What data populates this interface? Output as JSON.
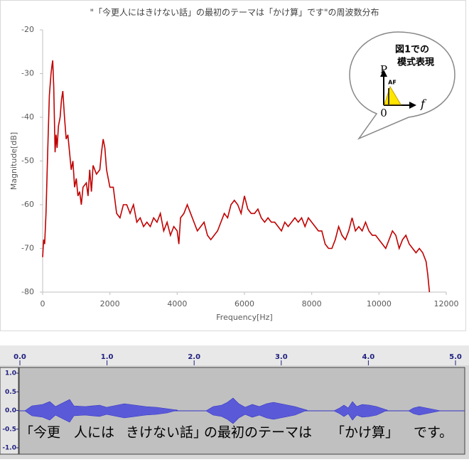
{
  "chart_data": [
    {
      "type": "line",
      "title": "\"「今更人にはきけない話」の最初のテーマは「かけ算」です\"の周波数分布",
      "x_label": "Frequency[Hz]",
      "y_label": "Magnitude[dB]",
      "xlim": [
        0,
        12000
      ],
      "xticks": [
        0,
        2000,
        4000,
        6000,
        8000,
        10000,
        12000
      ],
      "ylim": [
        -80,
        -20
      ],
      "yticks": [
        -20,
        -30,
        -40,
        -50,
        -60,
        -70,
        -80
      ],
      "grid": false,
      "series": [
        {
          "color": "#c00000",
          "x": [
            0,
            30,
            60,
            100,
            150,
            200,
            250,
            280,
            300,
            330,
            370,
            400,
            430,
            470,
            520,
            560,
            600,
            650,
            700,
            750,
            800,
            850,
            900,
            950,
            1000,
            1050,
            1100,
            1150,
            1200,
            1300,
            1350,
            1400,
            1450,
            1500,
            1600,
            1700,
            1750,
            1800,
            1850,
            1900,
            2000,
            2100,
            2200,
            2300,
            2400,
            2500,
            2600,
            2700,
            2800,
            2900,
            3000,
            3100,
            3200,
            3300,
            3400,
            3500,
            3600,
            3700,
            3800,
            3900,
            4000,
            4050,
            4100,
            4200,
            4300,
            4400,
            4500,
            4600,
            4700,
            4800,
            4900,
            5000,
            5100,
            5200,
            5300,
            5400,
            5500,
            5600,
            5700,
            5800,
            5900,
            6000,
            6100,
            6200,
            6300,
            6400,
            6500,
            6600,
            6700,
            6800,
            6900,
            7000,
            7100,
            7200,
            7300,
            7400,
            7500,
            7600,
            7700,
            7800,
            7900,
            8000,
            8100,
            8200,
            8300,
            8400,
            8500,
            8600,
            8700,
            8800,
            8900,
            9000,
            9100,
            9200,
            9300,
            9400,
            9500,
            9600,
            9700,
            9800,
            9900,
            10000,
            10100,
            10200,
            10300,
            10400,
            10500,
            10600,
            10700,
            10800,
            10900,
            11000,
            11100,
            11200,
            11300,
            11400,
            11450,
            11500
          ],
          "values": [
            -72,
            -68,
            -69,
            -62,
            -48,
            -35,
            -30,
            -28,
            -27,
            -33,
            -48,
            -44,
            -47,
            -42,
            -40,
            -36,
            -34,
            -40,
            -45,
            -44,
            -48,
            -52,
            -50,
            -56,
            -54,
            -58,
            -57,
            -60,
            -56,
            -55,
            -58,
            -52,
            -57,
            -51,
            -53,
            -52,
            -48,
            -45,
            -47,
            -52,
            -56,
            -56,
            -62,
            -63,
            -60,
            -60,
            -62,
            -60,
            -64,
            -63,
            -65,
            -64,
            -65,
            -63,
            -64,
            -62,
            -66,
            -64,
            -67,
            -65,
            -66,
            -69,
            -63,
            -62,
            -60,
            -62,
            -64,
            -66,
            -65,
            -64,
            -67,
            -68,
            -67,
            -66,
            -64,
            -62,
            -63,
            -60,
            -59,
            -60,
            -62,
            -58,
            -61,
            -62,
            -62,
            -61,
            -63,
            -64,
            -63,
            -64,
            -64,
            -65,
            -66,
            -64,
            -65,
            -64,
            -63,
            -64,
            -63,
            -65,
            -63,
            -64,
            -65,
            -66,
            -66,
            -69,
            -70,
            -70,
            -68,
            -65,
            -67,
            -68,
            -66,
            -63,
            -66,
            -65,
            -66,
            -64,
            -66,
            -67,
            -67,
            -68,
            -69,
            -70,
            -68,
            -66,
            -67,
            -70,
            -68,
            -67,
            -69,
            -70,
            -71,
            -70,
            -71,
            -73,
            -76,
            -80
          ]
        }
      ],
      "inset": {
        "title": [
          "図1での",
          "模式表現"
        ],
        "y_label": "P",
        "marker": "AF",
        "origin": "0",
        "x_label": "f"
      }
    },
    {
      "type": "waveform",
      "xlim": [
        0,
        5
      ],
      "xticks": [
        {
          "value": 0,
          "label": "0.0"
        },
        {
          "value": 1,
          "label": "1.0"
        },
        {
          "value": 2,
          "label": "2.0"
        },
        {
          "value": 3,
          "label": "3.0"
        },
        {
          "value": 4,
          "label": "4.0"
        },
        {
          "value": 5,
          "label": "5.0"
        }
      ],
      "ylim": [
        -1,
        1
      ],
      "yticks": [
        {
          "value": 1,
          "label": "1.0"
        },
        0.5,
        {
          "value": 0,
          "label": "0.0"
        },
        -0.5,
        {
          "value": -1,
          "label": "-1.0"
        }
      ],
      "annotations": [
        "「今更",
        "人には",
        "きけない話」",
        "の最初のテーマは",
        "「かけ算」",
        "です。"
      ]
    }
  ]
}
